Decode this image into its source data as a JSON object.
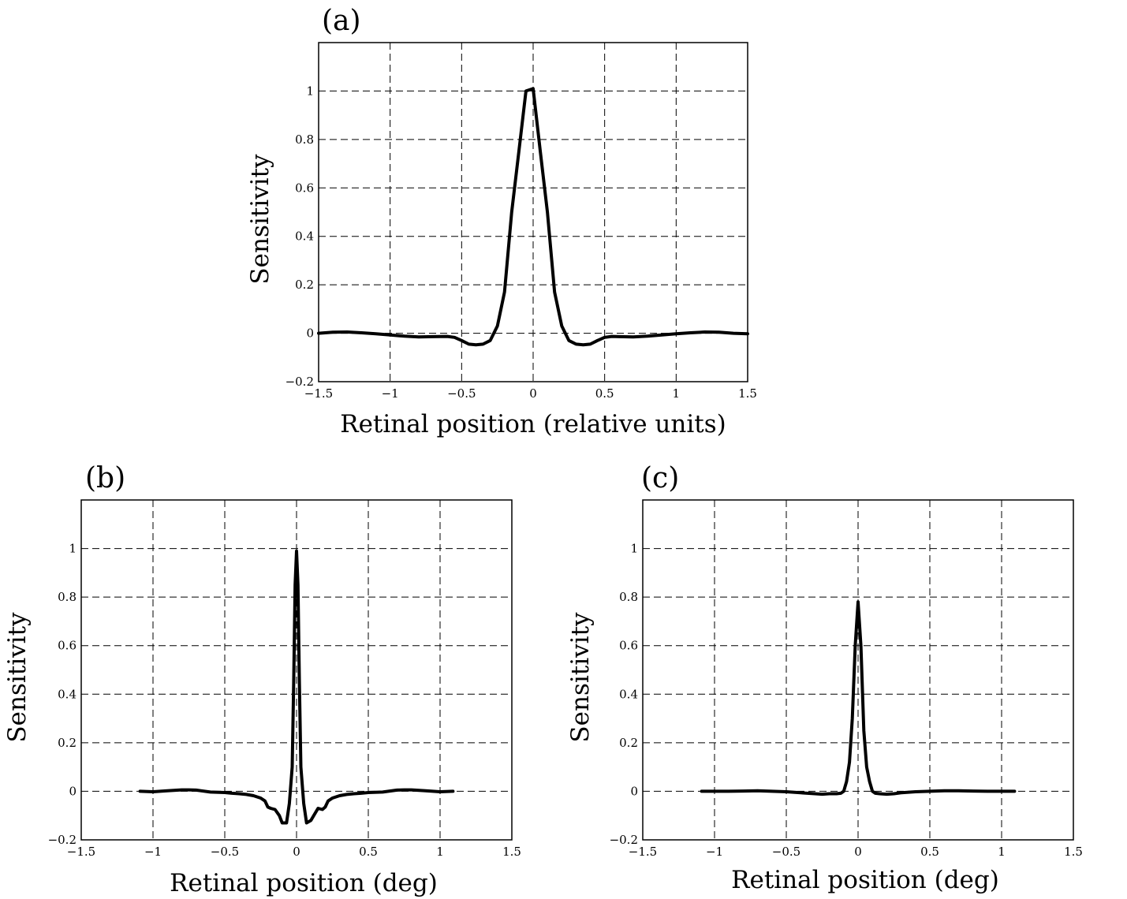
{
  "chart_data": [
    {
      "type": "line",
      "panel_label": "(a)",
      "xlabel": "Retinal position (relative units)",
      "ylabel": "Sensitivity",
      "xlim": [
        -1.5,
        1.5
      ],
      "ylim": [
        -0.2,
        1.2
      ],
      "xticks": [
        -1.5,
        -1,
        -0.5,
        0,
        0.5,
        1,
        1.5
      ],
      "xtick_labels": [
        "−1.5",
        "−1",
        "−0.5",
        "0",
        "0.5",
        "1",
        "1.5"
      ],
      "yticks": [
        -0.2,
        0,
        0.2,
        0.4,
        0.6,
        0.8,
        1
      ],
      "ytick_labels": [
        "−0.2",
        "0",
        "0.2",
        "0.4",
        "0.6",
        "0.8",
        "1"
      ],
      "grid": true,
      "series": [
        {
          "x": [
            -1.5,
            -1.4,
            -1.3,
            -1.2,
            -1.1,
            -1.0,
            -0.9,
            -0.8,
            -0.7,
            -0.6,
            -0.55,
            -0.5,
            -0.45,
            -0.4,
            -0.35,
            -0.3,
            -0.25,
            -0.2,
            -0.15,
            -0.1,
            -0.05,
            0,
            0.05,
            0.1,
            0.15,
            0.2,
            0.25,
            0.3,
            0.35,
            0.4,
            0.45,
            0.5,
            0.55,
            0.6,
            0.7,
            0.8,
            0.9,
            1.0,
            1.1,
            1.2,
            1.3,
            1.4,
            1.5
          ],
          "y": [
            0.0,
            0.004,
            0.005,
            0.002,
            -0.002,
            -0.007,
            -0.012,
            -0.015,
            -0.014,
            -0.013,
            -0.017,
            -0.03,
            -0.045,
            -0.048,
            -0.045,
            -0.03,
            0.03,
            0.17,
            0.5,
            0.75,
            1.0,
            1.01,
            0.75,
            0.5,
            0.17,
            0.03,
            -0.03,
            -0.045,
            -0.048,
            -0.045,
            -0.03,
            -0.017,
            -0.013,
            -0.014,
            -0.015,
            -0.012,
            -0.007,
            -0.002,
            0.002,
            0.005,
            0.004,
            0.0,
            -0.002
          ]
        }
      ]
    },
    {
      "type": "line",
      "panel_label": "(b)",
      "xlabel": "Retinal position (deg)",
      "ylabel": "Sensitivity",
      "xlim": [
        -1.5,
        1.5
      ],
      "ylim": [
        -0.2,
        1.2
      ],
      "xticks": [
        -1.5,
        -1,
        -0.5,
        0,
        0.5,
        1,
        1.5
      ],
      "xtick_labels": [
        "−1.5",
        "−1",
        "−0.5",
        "0",
        "0.5",
        "1",
        "1.5"
      ],
      "yticks": [
        -0.2,
        0,
        0.2,
        0.4,
        0.6,
        0.8,
        1
      ],
      "ytick_labels": [
        "−0.2",
        "0",
        "0.2",
        "0.4",
        "0.6",
        "0.8",
        "1"
      ],
      "grid": true,
      "series": [
        {
          "x": [
            -1.09,
            -1.0,
            -0.9,
            -0.8,
            -0.75,
            -0.7,
            -0.6,
            -0.5,
            -0.45,
            -0.4,
            -0.35,
            -0.3,
            -0.25,
            -0.22,
            -0.2,
            -0.18,
            -0.15,
            -0.12,
            -0.1,
            -0.07,
            -0.05,
            -0.03,
            -0.02,
            -0.01,
            0.0,
            0.01,
            0.02,
            0.03,
            0.05,
            0.07,
            0.1,
            0.12,
            0.15,
            0.18,
            0.2,
            0.22,
            0.25,
            0.3,
            0.35,
            0.4,
            0.45,
            0.5,
            0.6,
            0.7,
            0.75,
            0.8,
            0.9,
            1.0,
            1.09
          ],
          "y": [
            0.0,
            -0.002,
            0.002,
            0.006,
            0.006,
            0.005,
            -0.003,
            -0.005,
            -0.008,
            -0.01,
            -0.013,
            -0.018,
            -0.028,
            -0.04,
            -0.065,
            -0.07,
            -0.075,
            -0.1,
            -0.13,
            -0.13,
            -0.05,
            0.1,
            0.45,
            0.85,
            0.99,
            0.85,
            0.45,
            0.1,
            -0.05,
            -0.13,
            -0.12,
            -0.1,
            -0.07,
            -0.075,
            -0.065,
            -0.04,
            -0.028,
            -0.018,
            -0.013,
            -0.01,
            -0.008,
            -0.005,
            -0.003,
            0.005,
            0.006,
            0.006,
            0.002,
            -0.002,
            0.0
          ]
        }
      ]
    },
    {
      "type": "line",
      "panel_label": "(c)",
      "xlabel": "Retinal position (deg)",
      "ylabel": "Sensitivity",
      "xlim": [
        -1.5,
        1.5
      ],
      "ylim": [
        -0.2,
        1.2
      ],
      "xticks": [
        -1.5,
        -1,
        -0.5,
        0,
        0.5,
        1,
        1.5
      ],
      "xtick_labels": [
        "−1.5",
        "−1",
        "−0.5",
        "0",
        "0.5",
        "1",
        "1.5"
      ],
      "yticks": [
        -0.2,
        0,
        0.2,
        0.4,
        0.6,
        0.8,
        1
      ],
      "ytick_labels": [
        "−0.2",
        "0",
        "0.2",
        "0.4",
        "0.6",
        "0.8",
        "1"
      ],
      "grid": true,
      "series": [
        {
          "x": [
            -1.09,
            -1.0,
            -0.9,
            -0.8,
            -0.7,
            -0.6,
            -0.5,
            -0.4,
            -0.3,
            -0.25,
            -0.2,
            -0.15,
            -0.12,
            -0.1,
            -0.08,
            -0.06,
            -0.04,
            -0.02,
            0.0,
            0.02,
            0.04,
            0.06,
            0.08,
            0.1,
            0.12,
            0.15,
            0.2,
            0.25,
            0.3,
            0.4,
            0.5,
            0.6,
            0.7,
            0.8,
            0.9,
            1.0,
            1.09
          ],
          "y": [
            0.0,
            0.0,
            0.0,
            0.001,
            0.002,
            0.0,
            -0.002,
            -0.006,
            -0.01,
            -0.012,
            -0.01,
            -0.01,
            -0.008,
            0.0,
            0.04,
            0.12,
            0.3,
            0.6,
            0.78,
            0.6,
            0.25,
            0.1,
            0.04,
            0.0,
            -0.008,
            -0.01,
            -0.012,
            -0.01,
            -0.006,
            -0.002,
            0.0,
            0.002,
            0.002,
            0.001,
            0.0,
            0.0,
            0.0
          ]
        }
      ]
    }
  ]
}
